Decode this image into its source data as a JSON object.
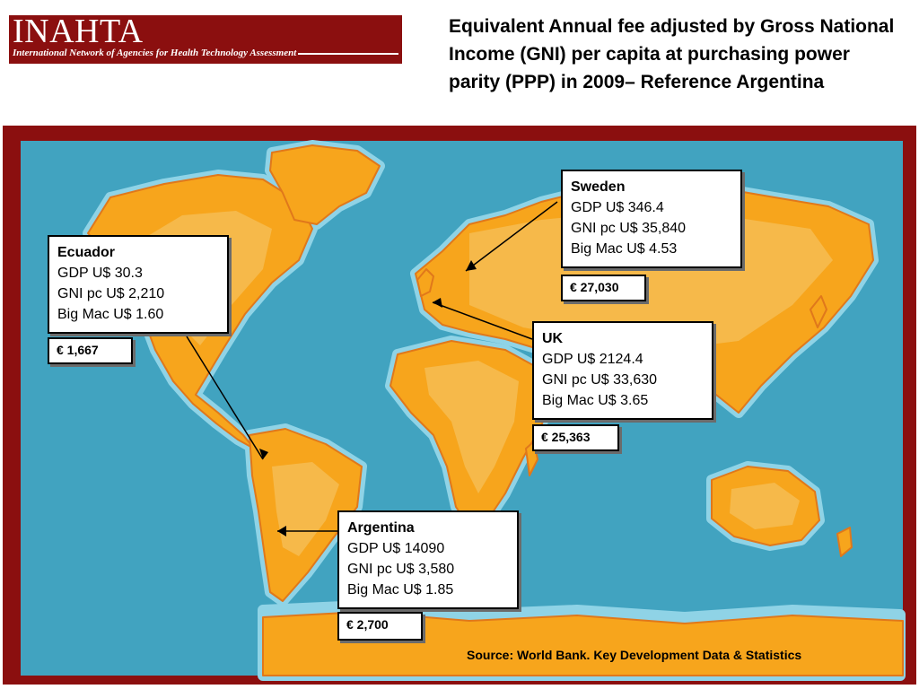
{
  "logo": {
    "title": "INAHTA",
    "subtitle": "International Network of Agencies for Health Technology Assessment"
  },
  "slide_title": "Equivalent Annual fee adjusted by Gross National Income (GNI) per capita at purchasing power parity (PPP) in 2009– Reference Argentina",
  "countries": [
    {
      "name": "Sweden",
      "gdp": "GDP U$ 346.4",
      "gni": "GNI pc U$ 35,840",
      "bigmac": "Big Mac U$ 4.53",
      "fee": "€ 27,030"
    },
    {
      "name": "Ecuador",
      "gdp": "GDP U$ 30.3",
      "gni": "GNI pc U$ 2,210",
      "bigmac": "Big Mac U$ 1.60",
      "fee": "€ 1,667"
    },
    {
      "name": "UK",
      "gdp": "GDP U$ 2124.4",
      "gni": "GNI pc U$ 33,630",
      "bigmac": "Big Mac U$ 3.65",
      "fee": "€ 25,363"
    },
    {
      "name": "Argentina",
      "gdp": "GDP U$ 14090",
      "gni": "GNI pc U$ 3,580",
      "bigmac": "Big Mac U$ 1.85",
      "fee": "€ 2,700"
    }
  ],
  "source": "Source: World Bank. Key Development Data & Statistics",
  "colors": {
    "brand": "#8b0f0f",
    "ocean": "#41a3c0",
    "coast": "#8fd3e6",
    "land": "#f7a51c",
    "land_inner": "#f6b94a",
    "land_edge": "#e0781b"
  }
}
